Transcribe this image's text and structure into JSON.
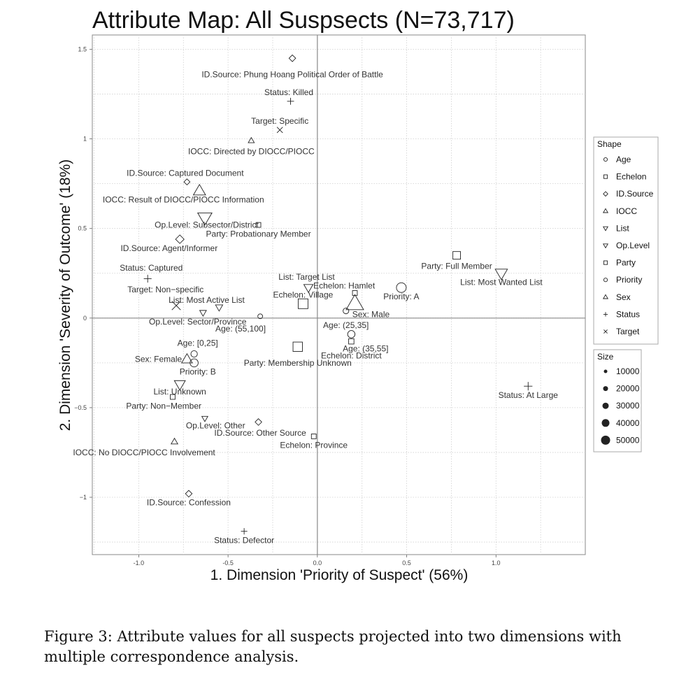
{
  "chart_data": {
    "type": "scatter",
    "title": "Attribute Map: All Suspsects (N=73,717)",
    "xlabel": "1. Dimension 'Priority of Suspect' (56%)",
    "ylabel": "2. Dimension 'Severity of Outcome' (18%)",
    "xlim": [
      -1.26,
      1.5
    ],
    "ylim": [
      -1.32,
      1.58
    ],
    "x_ticks": [
      -1.0,
      -0.5,
      0.0,
      0.5,
      1.0
    ],
    "x_tick_labels": [
      "-1.0",
      "-0.5",
      "0.0",
      "0.5",
      "1.0"
    ],
    "y_ticks": [
      -1.0,
      -0.5,
      0.0,
      0.5,
      1.0,
      1.5
    ],
    "y_tick_labels": [
      "−1",
      "−0.5",
      "0",
      "0.5",
      "1",
      "1.5"
    ],
    "grid": true,
    "reference_lines": {
      "x": 0,
      "y": 0
    },
    "legend_shape": {
      "title": "Shape",
      "entries": [
        {
          "label": "Age",
          "marker": "circle"
        },
        {
          "label": "Echelon",
          "marker": "square"
        },
        {
          "label": "ID.Source",
          "marker": "diamond"
        },
        {
          "label": "IOCC",
          "marker": "triangle-up"
        },
        {
          "label": "List",
          "marker": "triangle-down"
        },
        {
          "label": "Op.Level",
          "marker": "triangle-down"
        },
        {
          "label": "Party",
          "marker": "square"
        },
        {
          "label": "Priority",
          "marker": "circle"
        },
        {
          "label": "Sex",
          "marker": "triangle-up"
        },
        {
          "label": "Status",
          "marker": "plus"
        },
        {
          "label": "Target",
          "marker": "cross"
        }
      ]
    },
    "legend_size": {
      "title": "Size",
      "entries": [
        {
          "label": "10000",
          "value": 10000
        },
        {
          "label": "20000",
          "value": 20000
        },
        {
          "label": "30000",
          "value": 30000
        },
        {
          "label": "40000",
          "value": 40000
        },
        {
          "label": "50000",
          "value": 50000
        }
      ]
    },
    "points": [
      {
        "label": "ID.Source: Phung Hoang Political Order of Battle",
        "group": "ID.Source",
        "x": -0.14,
        "y": 1.45,
        "size": 3000,
        "lx": -0.14,
        "ly": 1.36
      },
      {
        "label": "Status: Killed",
        "group": "Status",
        "x": -0.15,
        "y": 1.21,
        "size": 4000,
        "lx": -0.16,
        "ly": 1.26
      },
      {
        "label": "Target: Specific",
        "group": "Target",
        "x": -0.21,
        "y": 1.05,
        "size": 4000,
        "lx": -0.21,
        "ly": 1.1
      },
      {
        "label": "IOCC: Directed by DIOCC/PIOCC",
        "group": "IOCC",
        "x": -0.37,
        "y": 0.99,
        "size": 2000,
        "lx": -0.37,
        "ly": 0.93
      },
      {
        "label": "ID.Source: Captured Document",
        "group": "ID.Source",
        "x": -0.73,
        "y": 0.76,
        "size": 2000,
        "lx": -0.74,
        "ly": 0.81
      },
      {
        "label": "IOCC: Result of DIOCC/PIOCC Information",
        "group": "IOCC",
        "x": -0.66,
        "y": 0.71,
        "size": 20000,
        "lx": -0.75,
        "ly": 0.66
      },
      {
        "label": "Op.Level: Subsector/District",
        "group": "Op.Level",
        "x": -0.63,
        "y": 0.56,
        "size": 30000,
        "lx": -0.62,
        "ly": 0.52
      },
      {
        "label": "Party: Probationary Member",
        "group": "Party",
        "x": -0.33,
        "y": 0.52,
        "size": 2000,
        "lx": -0.33,
        "ly": 0.47
      },
      {
        "label": "ID.Source: Agent/Informer",
        "group": "ID.Source",
        "x": -0.77,
        "y": 0.44,
        "size": 7000,
        "lx": -0.83,
        "ly": 0.39
      },
      {
        "label": "Party: Full Member",
        "group": "Party",
        "x": 0.78,
        "y": 0.35,
        "size": 10000,
        "lx": 0.78,
        "ly": 0.29
      },
      {
        "label": "List: Most Wanted List",
        "group": "List",
        "x": 1.03,
        "y": 0.25,
        "size": 20000,
        "lx": 1.03,
        "ly": 0.2
      },
      {
        "label": "Status: Captured",
        "group": "Status",
        "x": -0.95,
        "y": 0.22,
        "size": 6000,
        "lx": -0.93,
        "ly": 0.28
      },
      {
        "label": "List: Target List",
        "group": "List",
        "x": -0.05,
        "y": 0.17,
        "size": 9000,
        "lx": -0.06,
        "ly": 0.23
      },
      {
        "label": "Echelon: Hamlet",
        "group": "Echelon",
        "x": 0.21,
        "y": 0.14,
        "size": 2000,
        "lx": 0.15,
        "ly": 0.18
      },
      {
        "label": "Priority: A",
        "group": "Priority",
        "x": 0.47,
        "y": 0.17,
        "size": 20000,
        "lx": 0.47,
        "ly": 0.12
      },
      {
        "label": "Target: Non−specific",
        "group": "Target",
        "x": -0.79,
        "y": 0.07,
        "size": 15000,
        "lx": -0.85,
        "ly": 0.16
      },
      {
        "label": "List: Most Active List",
        "group": "List",
        "x": -0.55,
        "y": 0.06,
        "size": 4000,
        "lx": -0.62,
        "ly": 0.1
      },
      {
        "label": "Echelon: Village",
        "group": "Echelon",
        "x": -0.08,
        "y": 0.08,
        "size": 20000,
        "lx": -0.08,
        "ly": 0.13
      },
      {
        "label": "Sex: Male",
        "group": "Sex",
        "x": 0.21,
        "y": 0.08,
        "size": 50000,
        "lx": 0.3,
        "ly": 0.02
      },
      {
        "label": "Op.Level: Sector/Province",
        "group": "Op.Level",
        "x": -0.64,
        "y": 0.03,
        "size": 3000,
        "lx": -0.67,
        "ly": -0.02
      },
      {
        "label": "Age: (55,100]",
        "group": "Age",
        "x": -0.32,
        "y": 0.01,
        "size": 2000,
        "lx": -0.43,
        "ly": -0.06
      },
      {
        "label": "Age: (25,35]",
        "group": "Age",
        "x": 0.16,
        "y": 0.04,
        "size": 4000,
        "lx": 0.16,
        "ly": -0.04
      },
      {
        "label": "Age: (35,55]",
        "group": "Age",
        "x": 0.19,
        "y": -0.09,
        "size": 9000,
        "lx": 0.27,
        "ly": -0.17
      },
      {
        "label": "Echelon: District",
        "group": "Echelon",
        "x": 0.19,
        "y": -0.13,
        "size": 3000,
        "lx": 0.19,
        "ly": -0.21
      },
      {
        "label": "Age: [0,25]",
        "group": "Age",
        "x": -0.69,
        "y": -0.2,
        "size": 6000,
        "lx": -0.67,
        "ly": -0.14
      },
      {
        "label": "Party: Membership Unknown",
        "group": "Party",
        "x": -0.11,
        "y": -0.16,
        "size": 18000,
        "lx": -0.11,
        "ly": -0.25
      },
      {
        "label": "Sex: Female",
        "group": "Sex",
        "x": -0.73,
        "y": -0.23,
        "size": 14000,
        "lx": -0.89,
        "ly": -0.23
      },
      {
        "label": "Priority: B",
        "group": "Priority",
        "x": -0.69,
        "y": -0.25,
        "size": 12000,
        "lx": -0.67,
        "ly": -0.3
      },
      {
        "label": "List: Unknown",
        "group": "List",
        "x": -0.77,
        "y": -0.37,
        "size": 15000,
        "lx": -0.77,
        "ly": -0.41
      },
      {
        "label": "Party: Non−Member",
        "group": "Party",
        "x": -0.81,
        "y": -0.44,
        "size": 2000,
        "lx": -0.86,
        "ly": -0.49
      },
      {
        "label": "Status: At Large",
        "group": "Status",
        "x": 1.18,
        "y": -0.38,
        "size": 8000,
        "lx": 1.18,
        "ly": -0.43
      },
      {
        "label": "Op.Level: Other",
        "group": "Op.Level",
        "x": -0.63,
        "y": -0.56,
        "size": 2000,
        "lx": -0.57,
        "ly": -0.6
      },
      {
        "label": "ID.Source: Other Source",
        "group": "ID.Source",
        "x": -0.33,
        "y": -0.58,
        "size": 3000,
        "lx": -0.32,
        "ly": -0.64
      },
      {
        "label": "Echelon: Province",
        "group": "Echelon",
        "x": -0.02,
        "y": -0.66,
        "size": 2000,
        "lx": -0.02,
        "ly": -0.71
      },
      {
        "label": "IOCC: No DIOCC/PIOCC Involvement",
        "group": "IOCC",
        "x": -0.8,
        "y": -0.69,
        "size": 3000,
        "lx": -0.97,
        "ly": -0.75
      },
      {
        "label": "ID.Source: Confession",
        "group": "ID.Source",
        "x": -0.72,
        "y": -0.98,
        "size": 3000,
        "lx": -0.72,
        "ly": -1.03
      },
      {
        "label": "Status: Defector",
        "group": "Status",
        "x": -0.41,
        "y": -1.19,
        "size": 3000,
        "lx": -0.41,
        "ly": -1.24
      }
    ]
  },
  "caption": "Figure 3: Attribute values for all suspects projected into two dimensions with multiple correspondence analysis."
}
